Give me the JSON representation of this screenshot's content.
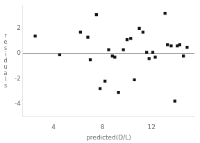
{
  "chart_data": {
    "type": "scatter",
    "x": [
      2.5,
      4.5,
      6.2,
      6.8,
      7.0,
      7.5,
      7.8,
      8.2,
      8.5,
      8.8,
      9.0,
      9.3,
      9.7,
      10.0,
      10.3,
      10.6,
      11.0,
      11.3,
      11.6,
      11.8,
      12.1,
      12.3,
      13.1,
      13.3,
      13.6,
      13.9,
      14.1,
      14.3,
      14.6,
      14.9
    ],
    "values": [
      1.4,
      -0.1,
      1.7,
      1.3,
      -0.5,
      3.1,
      -2.8,
      -2.2,
      0.3,
      -0.2,
      -0.3,
      -3.1,
      0.3,
      1.1,
      1.2,
      -2.1,
      2.0,
      1.7,
      0.1,
      -0.4,
      0.1,
      -0.3,
      3.2,
      0.7,
      0.6,
      -3.8,
      0.6,
      0.7,
      -0.2,
      0.5
    ],
    "xlabel": "predicted(D/L)",
    "ylabel": "r\ne\ns\ni\nd\nu\na\nl\ns",
    "xlim": [
      1.5,
      15.5
    ],
    "ylim": [
      -5,
      3.8
    ],
    "xticks": [
      4,
      8,
      12
    ],
    "yticks": [
      2,
      0,
      -2,
      -4
    ],
    "color": "#111111",
    "marker": "square",
    "grid": false
  }
}
